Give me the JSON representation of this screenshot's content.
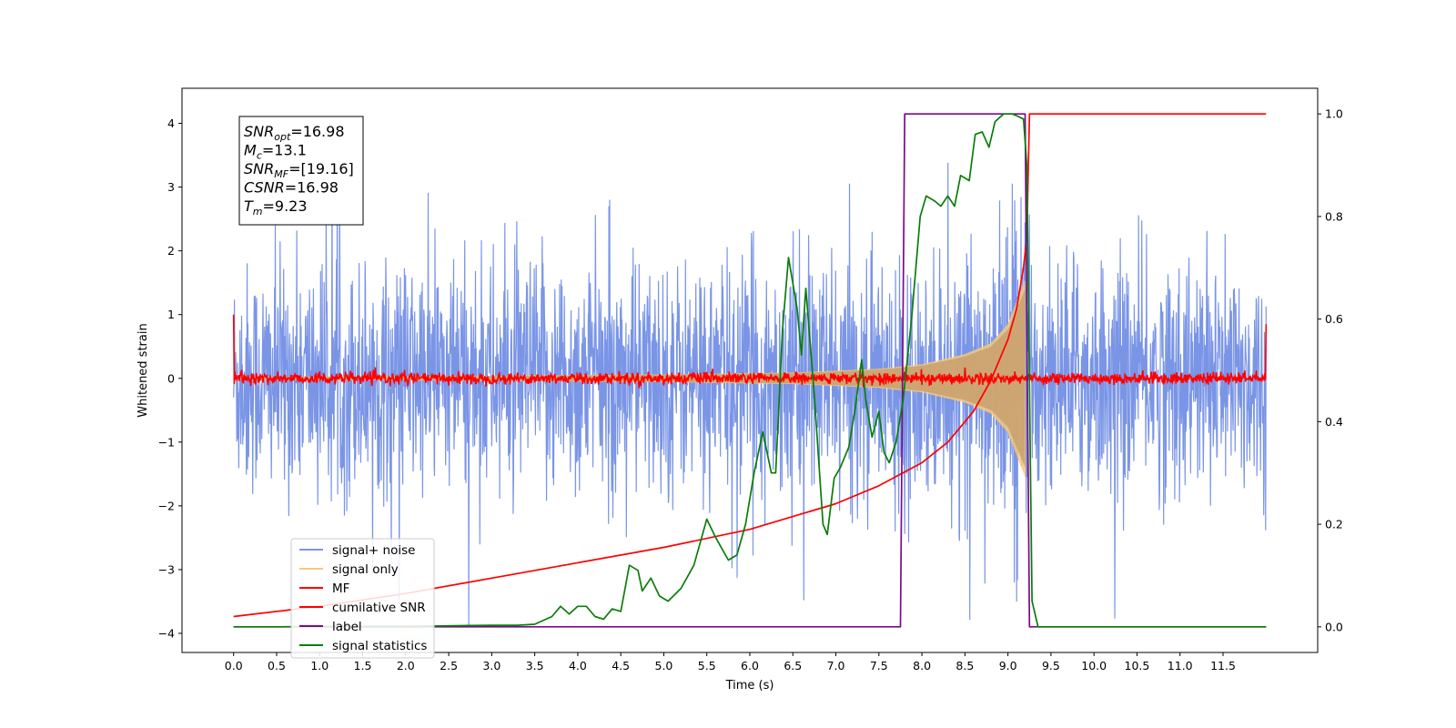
{
  "chart_data": {
    "type": "line",
    "xlabel": "Time (s)",
    "ylabel": "Whitened strain",
    "y2label": "",
    "xlim": [
      -0.6,
      12.6
    ],
    "ylim": [
      -4.3,
      4.55
    ],
    "y2lim": [
      -0.05,
      1.05
    ],
    "xticks": [
      0.0,
      0.5,
      1.0,
      1.5,
      2.0,
      2.5,
      3.0,
      3.5,
      4.0,
      4.5,
      5.0,
      5.5,
      6.0,
      6.5,
      7.0,
      7.5,
      8.0,
      8.5,
      9.0,
      9.5,
      10.0,
      10.5,
      11.0,
      11.5
    ],
    "xtick_labels": [
      "0.0",
      "0.5",
      "1.0",
      "1.5",
      "2.0",
      "2.5",
      "3.0",
      "3.5",
      "4.0",
      "4.5",
      "5.0",
      "5.5",
      "6.0",
      "6.5",
      "7.0",
      "7.5",
      "8.0",
      "8.5",
      "9.0",
      "9.5",
      "10.0",
      "10.5",
      "11.0",
      "11.5"
    ],
    "yticks": [
      -4,
      -3,
      -2,
      -1,
      0,
      1,
      2,
      3,
      4
    ],
    "ytick_labels": [
      "−4",
      "−3",
      "−2",
      "−1",
      "0",
      "1",
      "2",
      "3",
      "4"
    ],
    "y2ticks": [
      0.0,
      0.2,
      0.4,
      0.6,
      0.8,
      1.0
    ],
    "y2tick_labels": [
      "0.0",
      "0.2",
      "0.4",
      "0.6",
      "0.8",
      "1.0"
    ],
    "grid": false,
    "legend_position": "lower-left",
    "legend": [
      {
        "label": "signal+ noise",
        "color": "#7a95e6"
      },
      {
        "label": "signal only",
        "color": "#f5c97a"
      },
      {
        "label": "MF",
        "color": "#ff0000"
      },
      {
        "label": "cumilative SNR",
        "color": "#ff0000"
      },
      {
        "label": "label",
        "color": "#7b0a8a"
      },
      {
        "label": "signal statistics",
        "color": "#0a7d0a"
      }
    ],
    "stats_box": {
      "lines": [
        {
          "sym": "SNR",
          "sub": "opt",
          "value": "=16.98"
        },
        {
          "sym": "M",
          "sub": "c",
          "value": "=13.1"
        },
        {
          "sym": "SNR",
          "sub": "MF",
          "value": "=[19.16]"
        },
        {
          "sym": "CSNR",
          "sub": "",
          "value": "=16.98"
        },
        {
          "sym": "T",
          "sub": "m",
          "value": "=9.23"
        }
      ]
    },
    "series": [
      {
        "name": "signal+ noise",
        "axis": "left",
        "color": "#7a95e6",
        "t_range": [
          0.0,
          12.0
        ],
        "noise_amplitude_typical": 1.6,
        "noise_spike_max": 4.15,
        "noise_spike_min": -3.85
      },
      {
        "name": "signal only",
        "axis": "left",
        "color": "#f5c97a",
        "t_range": [
          0.0,
          9.2
        ],
        "envelope_points": [
          [
            0.0,
            0.02
          ],
          [
            3.0,
            0.04
          ],
          [
            5.0,
            0.06
          ],
          [
            6.5,
            0.09
          ],
          [
            7.5,
            0.15
          ],
          [
            8.0,
            0.22
          ],
          [
            8.5,
            0.38
          ],
          [
            8.8,
            0.55
          ],
          [
            9.0,
            0.85
          ],
          [
            9.1,
            1.2
          ],
          [
            9.2,
            1.55
          ]
        ]
      },
      {
        "name": "MF",
        "axis": "left",
        "color": "#ff0000",
        "t_range": [
          0.0,
          12.0
        ],
        "edge_values": {
          "start": 1.0,
          "end": 0.85
        },
        "ripple": 0.1
      },
      {
        "name": "cumilative SNR",
        "axis": "right",
        "color": "#ff0000",
        "points": [
          [
            0.0,
            0.02
          ],
          [
            1.0,
            0.04
          ],
          [
            2.0,
            0.065
          ],
          [
            3.0,
            0.095
          ],
          [
            4.0,
            0.125
          ],
          [
            5.0,
            0.155
          ],
          [
            6.0,
            0.19
          ],
          [
            6.5,
            0.215
          ],
          [
            7.0,
            0.24
          ],
          [
            7.5,
            0.275
          ],
          [
            8.0,
            0.32
          ],
          [
            8.3,
            0.36
          ],
          [
            8.6,
            0.42
          ],
          [
            8.8,
            0.48
          ],
          [
            9.0,
            0.56
          ],
          [
            9.1,
            0.62
          ],
          [
            9.18,
            0.7
          ],
          [
            9.22,
            0.76
          ],
          [
            9.25,
            1.0
          ],
          [
            12.0,
            1.0
          ]
        ]
      },
      {
        "name": "label",
        "axis": "right",
        "color": "#7b0a8a",
        "points": [
          [
            0.0,
            0.0
          ],
          [
            7.75,
            0.0
          ],
          [
            7.8,
            1.0
          ],
          [
            9.2,
            1.0
          ],
          [
            9.25,
            0.0
          ],
          [
            12.0,
            0.0
          ]
        ]
      },
      {
        "name": "signal statistics",
        "axis": "right",
        "color": "#0a7d0a",
        "points": [
          [
            0.0,
            0.0
          ],
          [
            0.5,
            0.0
          ],
          [
            1.0,
            0.001
          ],
          [
            1.5,
            0.001
          ],
          [
            2.0,
            0.001
          ],
          [
            2.5,
            0.002
          ],
          [
            3.0,
            0.003
          ],
          [
            3.3,
            0.003
          ],
          [
            3.5,
            0.005
          ],
          [
            3.7,
            0.02
          ],
          [
            3.8,
            0.04
          ],
          [
            3.9,
            0.025
          ],
          [
            4.0,
            0.04
          ],
          [
            4.1,
            0.04
          ],
          [
            4.2,
            0.02
          ],
          [
            4.3,
            0.015
          ],
          [
            4.4,
            0.035
          ],
          [
            4.5,
            0.03
          ],
          [
            4.6,
            0.12
          ],
          [
            4.7,
            0.11
          ],
          [
            4.75,
            0.07
          ],
          [
            4.85,
            0.095
          ],
          [
            4.95,
            0.06
          ],
          [
            5.05,
            0.05
          ],
          [
            5.2,
            0.075
          ],
          [
            5.35,
            0.12
          ],
          [
            5.5,
            0.21
          ],
          [
            5.6,
            0.175
          ],
          [
            5.7,
            0.145
          ],
          [
            5.75,
            0.13
          ],
          [
            5.85,
            0.14
          ],
          [
            5.95,
            0.2
          ],
          [
            6.05,
            0.3
          ],
          [
            6.15,
            0.38
          ],
          [
            6.25,
            0.3
          ],
          [
            6.3,
            0.3
          ],
          [
            6.38,
            0.58
          ],
          [
            6.45,
            0.72
          ],
          [
            6.55,
            0.62
          ],
          [
            6.6,
            0.53
          ],
          [
            6.65,
            0.66
          ],
          [
            6.75,
            0.45
          ],
          [
            6.85,
            0.2
          ],
          [
            6.9,
            0.18
          ],
          [
            6.98,
            0.29
          ],
          [
            7.05,
            0.31
          ],
          [
            7.15,
            0.35
          ],
          [
            7.22,
            0.42
          ],
          [
            7.3,
            0.52
          ],
          [
            7.35,
            0.44
          ],
          [
            7.42,
            0.37
          ],
          [
            7.5,
            0.42
          ],
          [
            7.56,
            0.34
          ],
          [
            7.62,
            0.32
          ],
          [
            7.7,
            0.36
          ],
          [
            7.78,
            0.44
          ],
          [
            7.88,
            0.6
          ],
          [
            7.98,
            0.8
          ],
          [
            8.05,
            0.84
          ],
          [
            8.15,
            0.83
          ],
          [
            8.22,
            0.82
          ],
          [
            8.3,
            0.84
          ],
          [
            8.38,
            0.82
          ],
          [
            8.45,
            0.88
          ],
          [
            8.55,
            0.87
          ],
          [
            8.62,
            0.96
          ],
          [
            8.7,
            0.965
          ],
          [
            8.78,
            0.935
          ],
          [
            8.85,
            0.985
          ],
          [
            8.95,
            1.0
          ],
          [
            9.05,
            1.0
          ],
          [
            9.12,
            0.995
          ],
          [
            9.18,
            0.99
          ],
          [
            9.22,
            0.9
          ],
          [
            9.28,
            0.05
          ],
          [
            9.35,
            0.0
          ],
          [
            12.0,
            0.0
          ]
        ]
      }
    ]
  }
}
